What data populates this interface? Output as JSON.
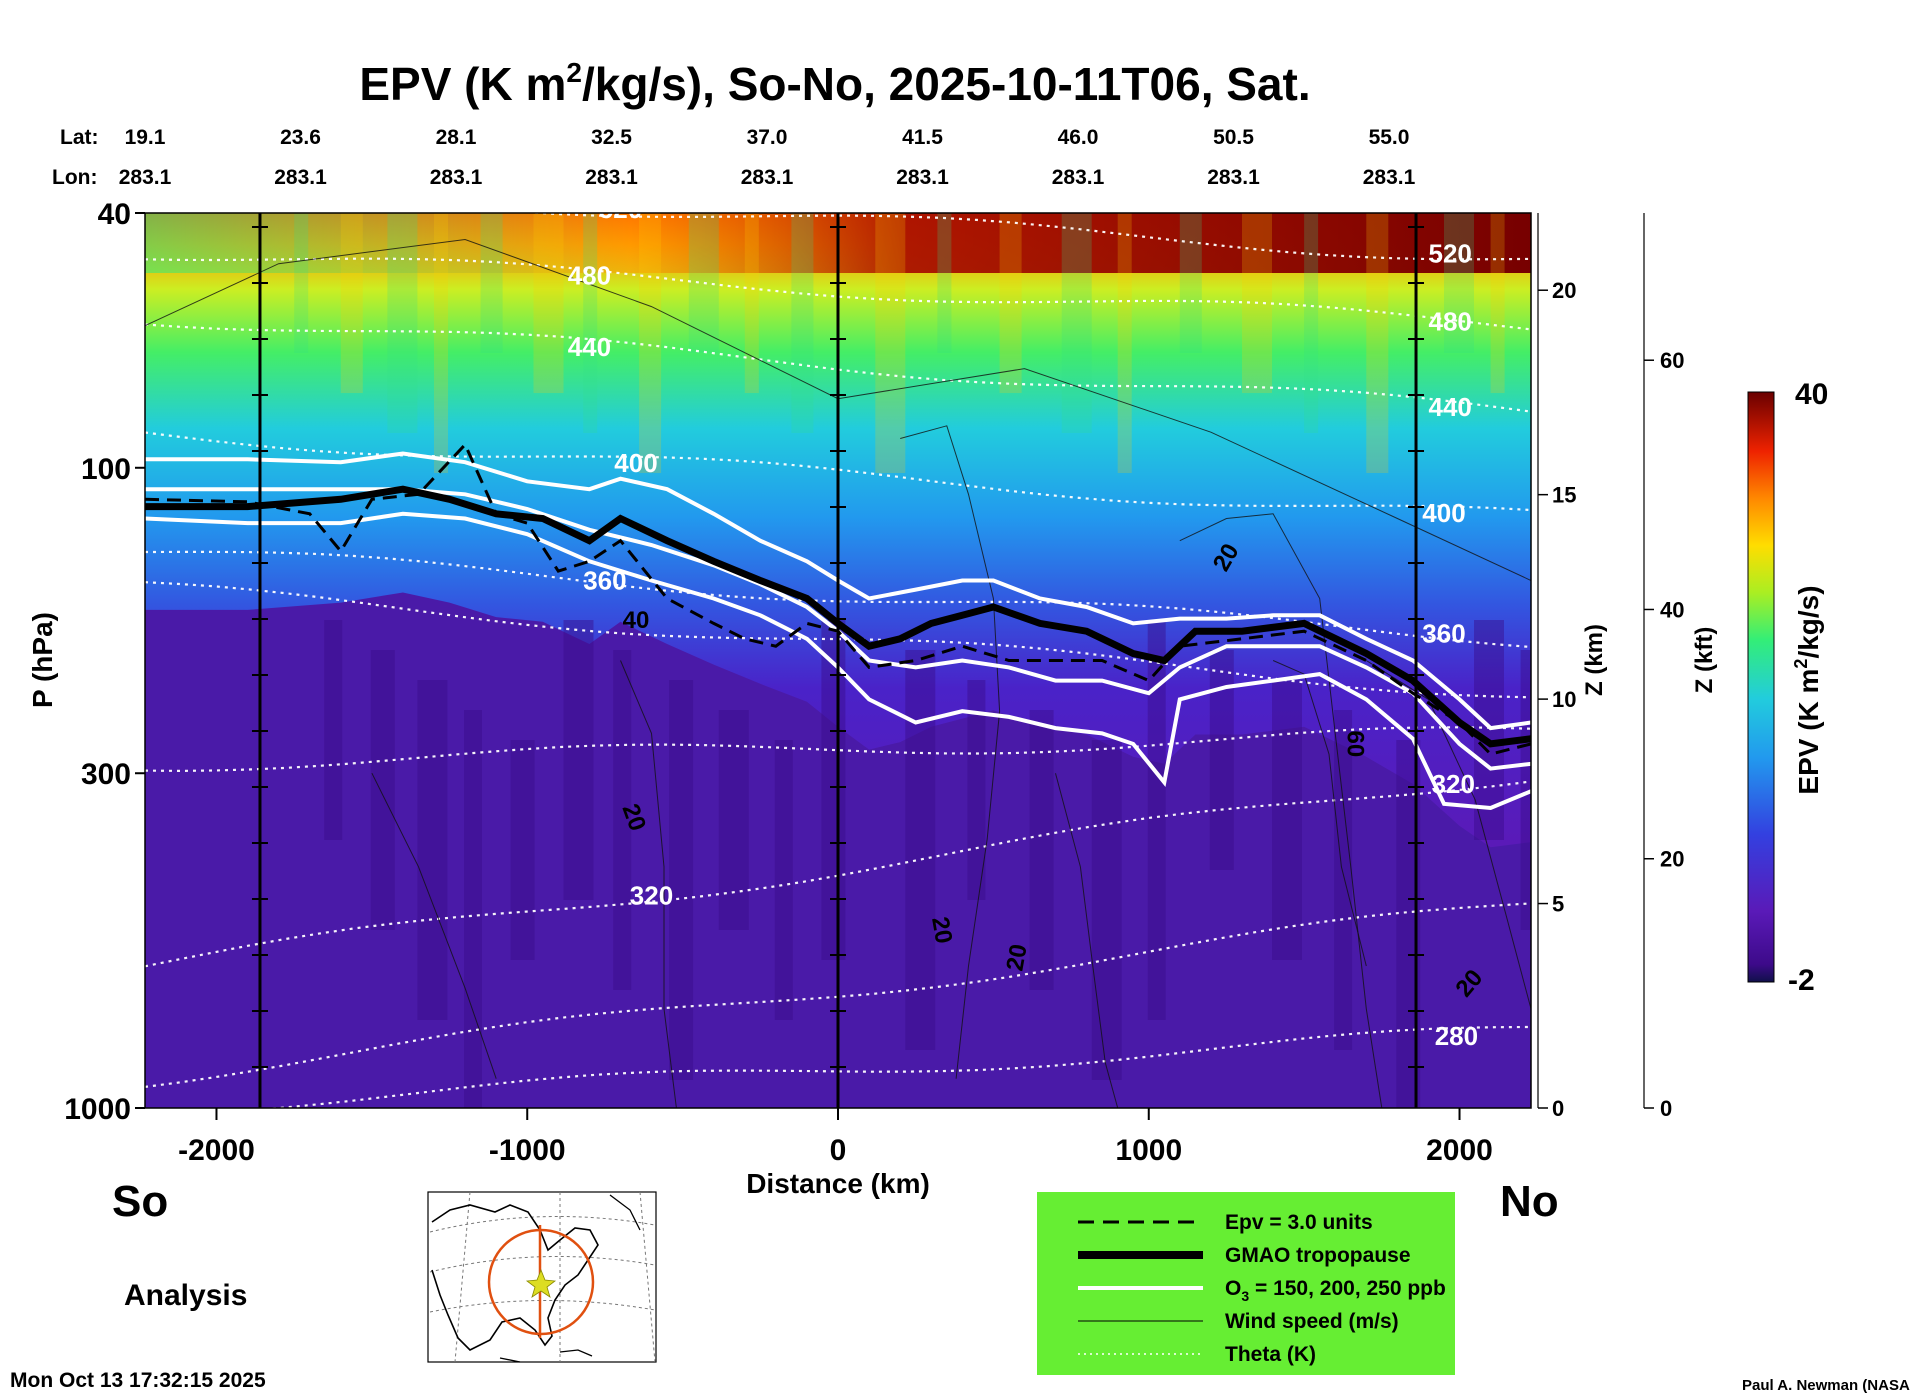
{
  "chart_data": {
    "type": "heatmap",
    "title": {
      "main": "EPV (K m",
      "sup": "2",
      "rest": "/kg/s), So-No, 2025-10-11T06, Sat."
    },
    "xlabel": "Distance (km)",
    "ylabel": "P (hPa)",
    "xlim": [
      -2230,
      2230
    ],
    "x_ticks": [
      -2000,
      -1000,
      0,
      1000,
      2000
    ],
    "x_tick_labels": [
      "-2000",
      "-1000",
      "0",
      "1000",
      "2000"
    ],
    "y_scale": "log",
    "ylim": [
      1000,
      40
    ],
    "y_ticks": [
      40,
      100,
      300,
      1000
    ],
    "y_tick_labels": [
      "40",
      "100",
      "300",
      "1000"
    ],
    "z_km_label": "Z (km)",
    "z_km_ticks": [
      0,
      5,
      10,
      15,
      20
    ],
    "z_kft_label": "Z (kft)",
    "z_kft_ticks": [
      0,
      20,
      40,
      60
    ],
    "lat_label": "Lat:",
    "lon_label": "Lon:",
    "lat_values": [
      "19.1",
      "23.6",
      "28.1",
      "32.5",
      "37.0",
      "41.5",
      "46.0",
      "50.5",
      "55.0"
    ],
    "lon_values": [
      "283.1",
      "283.1",
      "283.1",
      "283.1",
      "283.1",
      "283.1",
      "283.1",
      "283.1",
      "283.1"
    ],
    "vertical_markers_km": [
      -1860,
      0,
      1860
    ],
    "colorbar": {
      "label_main": "EPV (K m",
      "label_sup": "2",
      "label_rest": "/kg/s)",
      "min_label": "-2",
      "max_label": "40",
      "min": -2,
      "max": 40
    },
    "theta_contours": [
      {
        "label": "520",
        "p_left": 36,
        "p_right": 47,
        "label_x": -700,
        "label_x2": 1970
      },
      {
        "label": "480",
        "p_left": 46,
        "p_right": 60,
        "label_x": -800,
        "label_x2": 1970
      },
      {
        "label": "440",
        "p_left": 58,
        "p_right": 82,
        "label_x": -800,
        "label_x2": 1970
      },
      {
        "label": "400",
        "p_left": 88,
        "p_right": 120,
        "label_x": -650,
        "label_x2": 1950
      },
      {
        "label": "360",
        "p_left": 135,
        "p_right": 185,
        "label_x": -750,
        "label_x2": 1950
      },
      {
        "label": "",
        "p_left": 155,
        "p_right": 225,
        "label_x": null,
        "label_x2": null
      },
      {
        "label": "",
        "p_left": 290,
        "p_right": 260,
        "label_x": null,
        "label_x2": null
      },
      {
        "label": "320",
        "p_left": 600,
        "p_right": 300,
        "label_x": -600,
        "label_x2": 1980
      },
      {
        "label": "",
        "p_left": 900,
        "p_right": 480,
        "label_x": null,
        "label_x2": null
      },
      {
        "label": "280",
        "p_left": 1000,
        "p_right": 760,
        "label_x": null,
        "label_x2": 1990
      }
    ],
    "tropopause_km_hpa": [
      [
        -2230,
        115
      ],
      [
        -1900,
        115
      ],
      [
        -1600,
        112
      ],
      [
        -1400,
        108
      ],
      [
        -1250,
        112
      ],
      [
        -1100,
        118
      ],
      [
        -950,
        120
      ],
      [
        -800,
        130
      ],
      [
        -700,
        120
      ],
      [
        -550,
        130
      ],
      [
        -400,
        140
      ],
      [
        -250,
        150
      ],
      [
        -100,
        160
      ],
      [
        0,
        175
      ],
      [
        100,
        190
      ],
      [
        200,
        185
      ],
      [
        300,
        175
      ],
      [
        400,
        170
      ],
      [
        500,
        165
      ],
      [
        650,
        175
      ],
      [
        800,
        180
      ],
      [
        950,
        195
      ],
      [
        1050,
        200
      ],
      [
        1150,
        180
      ],
      [
        1300,
        180
      ],
      [
        1500,
        175
      ],
      [
        1700,
        195
      ],
      [
        1850,
        215
      ],
      [
        2000,
        250
      ],
      [
        2100,
        270
      ],
      [
        2230,
        265
      ]
    ],
    "ozone_contours_km_hpa": [
      [
        [
          -2230,
          97
        ],
        [
          -1900,
          97
        ],
        [
          -1600,
          98
        ],
        [
          -1400,
          95
        ],
        [
          -1200,
          98
        ],
        [
          -1000,
          105
        ],
        [
          -800,
          108
        ],
        [
          -700,
          104
        ],
        [
          -550,
          108
        ],
        [
          -400,
          118
        ],
        [
          -250,
          130
        ],
        [
          -100,
          140
        ],
        [
          0,
          150
        ],
        [
          100,
          160
        ],
        [
          250,
          155
        ],
        [
          400,
          150
        ],
        [
          500,
          150
        ],
        [
          650,
          160
        ],
        [
          800,
          165
        ],
        [
          950,
          175
        ],
        [
          1100,
          172
        ],
        [
          1250,
          172
        ],
        [
          1400,
          170
        ],
        [
          1550,
          170
        ],
        [
          1700,
          185
        ],
        [
          1850,
          200
        ],
        [
          2000,
          230
        ],
        [
          2100,
          255
        ],
        [
          2230,
          250
        ]
      ],
      [
        [
          -2230,
          108
        ],
        [
          -1900,
          108
        ],
        [
          -1600,
          108
        ],
        [
          -1400,
          108
        ],
        [
          -1200,
          110
        ],
        [
          -1000,
          116
        ],
        [
          -800,
          125
        ],
        [
          -600,
          132
        ],
        [
          -400,
          142
        ],
        [
          -250,
          152
        ],
        [
          -100,
          165
        ],
        [
          0,
          180
        ],
        [
          100,
          200
        ],
        [
          250,
          205
        ],
        [
          400,
          200
        ],
        [
          550,
          205
        ],
        [
          700,
          215
        ],
        [
          850,
          215
        ],
        [
          1000,
          225
        ],
        [
          1100,
          205
        ],
        [
          1250,
          190
        ],
        [
          1400,
          190
        ],
        [
          1550,
          190
        ],
        [
          1700,
          205
        ],
        [
          1850,
          225
        ],
        [
          2000,
          270
        ],
        [
          2100,
          295
        ],
        [
          2230,
          290
        ]
      ],
      [
        [
          -2230,
          120
        ],
        [
          -1900,
          122
        ],
        [
          -1600,
          122
        ],
        [
          -1400,
          118
        ],
        [
          -1200,
          120
        ],
        [
          -1000,
          127
        ],
        [
          -800,
          140
        ],
        [
          -600,
          150
        ],
        [
          -400,
          160
        ],
        [
          -250,
          170
        ],
        [
          -100,
          185
        ],
        [
          0,
          205
        ],
        [
          100,
          230
        ],
        [
          250,
          250
        ],
        [
          400,
          240
        ],
        [
          550,
          245
        ],
        [
          700,
          255
        ],
        [
          850,
          260
        ],
        [
          950,
          270
        ],
        [
          1050,
          310
        ],
        [
          1100,
          230
        ],
        [
          1250,
          220
        ],
        [
          1400,
          215
        ],
        [
          1550,
          210
        ],
        [
          1700,
          230
        ],
        [
          1850,
          265
        ],
        [
          1950,
          335
        ],
        [
          2100,
          340
        ],
        [
          2230,
          320
        ]
      ]
    ],
    "epv3_contour_km_hpa": [
      [
        -2230,
        112
      ],
      [
        -1900,
        113
      ],
      [
        -1700,
        118
      ],
      [
        -1600,
        135
      ],
      [
        -1500,
        112
      ],
      [
        -1350,
        110
      ],
      [
        -1200,
        92
      ],
      [
        -1100,
        118
      ],
      [
        -1000,
        122
      ],
      [
        -900,
        145
      ],
      [
        -800,
        140
      ],
      [
        -700,
        130
      ],
      [
        -550,
        160
      ],
      [
        -400,
        175
      ],
      [
        -300,
        185
      ],
      [
        -200,
        190
      ],
      [
        -100,
        175
      ],
      [
        0,
        180
      ],
      [
        100,
        205
      ],
      [
        250,
        200
      ],
      [
        400,
        190
      ],
      [
        550,
        200
      ],
      [
        700,
        200
      ],
      [
        850,
        200
      ],
      [
        1000,
        215
      ],
      [
        1100,
        190
      ],
      [
        1300,
        185
      ],
      [
        1500,
        180
      ],
      [
        1700,
        200
      ],
      [
        1850,
        225
      ],
      [
        2000,
        250
      ],
      [
        2100,
        280
      ],
      [
        2230,
        270
      ]
    ],
    "wind_labels": [
      {
        "label": "20",
        "x": 1270,
        "p": 140,
        "rot": -60
      },
      {
        "label": "40",
        "x": -650,
        "p": 178,
        "rot": 0
      },
      {
        "label": "20",
        "x": -680,
        "p": 355,
        "rot": 70
      },
      {
        "label": "20",
        "x": 310,
        "p": 530,
        "rot": 80
      },
      {
        "label": "20",
        "x": 600,
        "p": 585,
        "rot": -80
      },
      {
        "label": "60",
        "x": 1640,
        "p": 270,
        "rot": 90
      },
      {
        "label": "20",
        "x": 2050,
        "p": 650,
        "rot": -50
      }
    ],
    "legend": {
      "entries": [
        {
          "style": "dashed",
          "label_main": "Epv = 3.0 units"
        },
        {
          "style": "thick",
          "label_main": "GMAO tropopause"
        },
        {
          "style": "white",
          "label_main": "O",
          "label_sub": "3",
          "label_rest": " = 150, 200, 250 ppb"
        },
        {
          "style": "thin",
          "label_main": "Wind speed (m/s)"
        },
        {
          "style": "dotted",
          "label_main": "Theta (K)"
        }
      ],
      "bg_color": "#66ee33"
    },
    "left_label": "So",
    "right_label": "No",
    "analysis_label": "Analysis",
    "timestamp": "Mon Oct 13 17:32:15 2025",
    "credit": "Paul A. Newman (NASA"
  }
}
